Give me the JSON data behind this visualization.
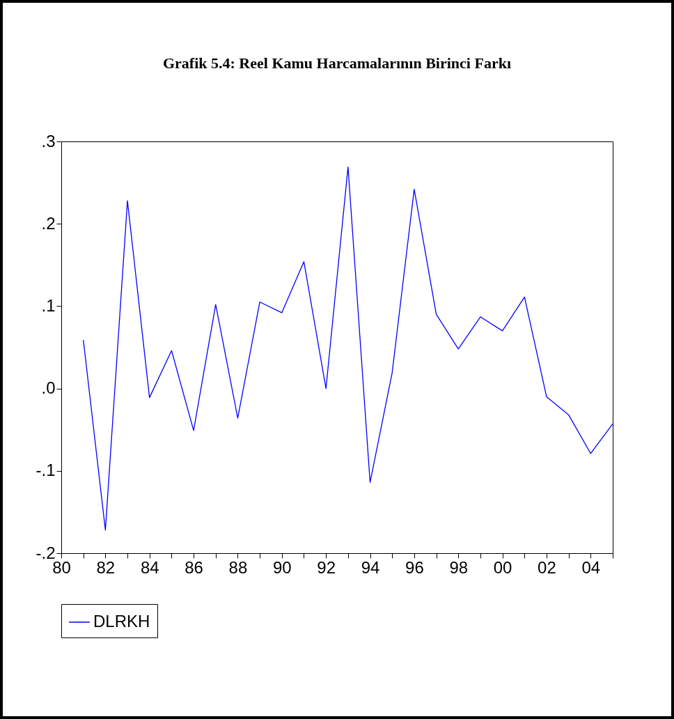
{
  "chart_data": {
    "type": "line",
    "title": "Grafik 5.4: Reel Kamu Harcamalarının Birinci Farkı",
    "x": [
      1981,
      1982,
      1983,
      1984,
      1985,
      1986,
      1987,
      1988,
      1989,
      1990,
      1991,
      1992,
      1993,
      1994,
      1995,
      1996,
      1997,
      1998,
      1999,
      2000,
      2001,
      2002,
      2003,
      2004,
      2005
    ],
    "series": [
      {
        "name": "DLRKH",
        "color": "#0000ff",
        "values": [
          0.059,
          -0.172,
          0.228,
          -0.011,
          0.046,
          -0.051,
          0.102,
          -0.036,
          0.105,
          0.092,
          0.154,
          0.0,
          0.269,
          -0.114,
          0.019,
          0.242,
          0.09,
          0.048,
          0.087,
          0.07,
          0.111,
          -0.01,
          -0.032,
          -0.079,
          -0.043
        ]
      }
    ],
    "xlim": [
      1980,
      2005
    ],
    "xticks": [
      {
        "value": 1980,
        "label": "80"
      },
      {
        "value": 1981,
        "label": null
      },
      {
        "value": 1982,
        "label": "82"
      },
      {
        "value": 1983,
        "label": null
      },
      {
        "value": 1984,
        "label": "84"
      },
      {
        "value": 1985,
        "label": null
      },
      {
        "value": 1986,
        "label": "86"
      },
      {
        "value": 1987,
        "label": null
      },
      {
        "value": 1988,
        "label": "88"
      },
      {
        "value": 1989,
        "label": null
      },
      {
        "value": 1990,
        "label": "90"
      },
      {
        "value": 1991,
        "label": null
      },
      {
        "value": 1992,
        "label": "92"
      },
      {
        "value": 1993,
        "label": null
      },
      {
        "value": 1994,
        "label": "94"
      },
      {
        "value": 1995,
        "label": null
      },
      {
        "value": 1996,
        "label": "96"
      },
      {
        "value": 1997,
        "label": null
      },
      {
        "value": 1998,
        "label": "98"
      },
      {
        "value": 1999,
        "label": null
      },
      {
        "value": 2000,
        "label": "00"
      },
      {
        "value": 2001,
        "label": null
      },
      {
        "value": 2002,
        "label": "02"
      },
      {
        "value": 2003,
        "label": null
      },
      {
        "value": 2004,
        "label": "04"
      },
      {
        "value": 2005,
        "label": null
      }
    ],
    "ylim": [
      -0.2,
      0.3
    ],
    "yticks": [
      {
        "value": -0.2,
        "label": "-.2"
      },
      {
        "value": -0.1,
        "label": "-.1"
      },
      {
        "value": 0,
        "label": ".0"
      },
      {
        "value": 0.1,
        "label": ".1"
      },
      {
        "value": 0.2,
        "label": ".2"
      },
      {
        "value": 0.3,
        "label": ".3"
      }
    ],
    "grid": false,
    "legend": "bottom",
    "marker": "none",
    "line_style": "solid"
  }
}
